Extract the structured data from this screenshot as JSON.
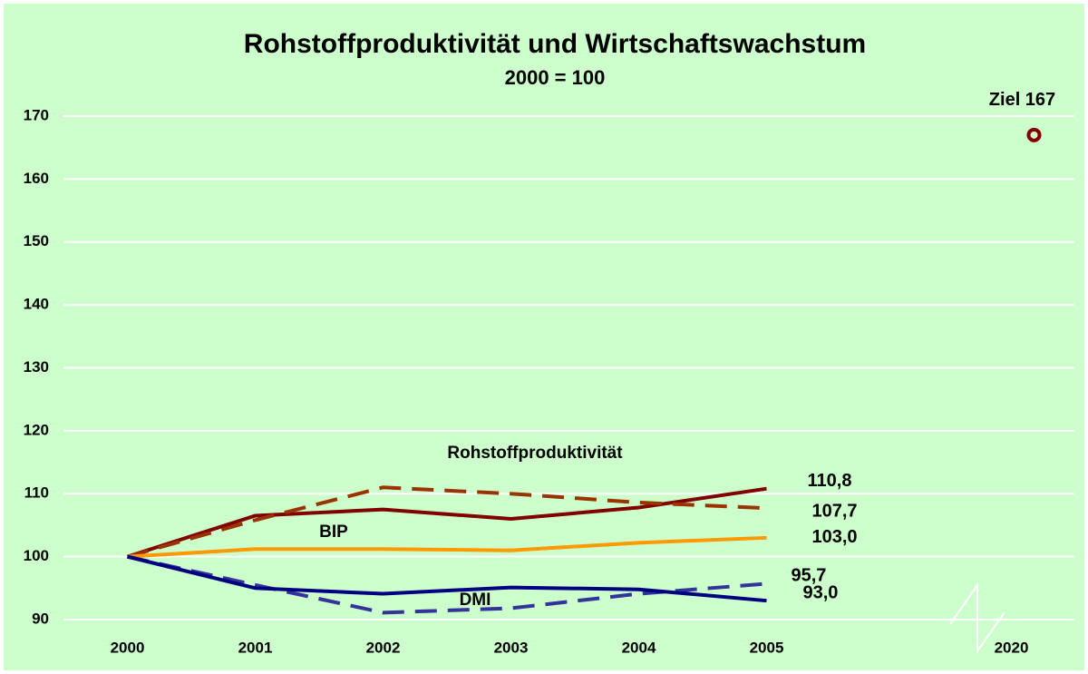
{
  "chart_data": {
    "type": "line",
    "title": "Rohstoffproduktivität  und Wirtschaftswachstum",
    "subtitle": "2000 = 100",
    "categories": [
      "2000",
      "2001",
      "2002",
      "2003",
      "2004",
      "2005",
      null,
      "2020"
    ],
    "ylim": [
      90,
      170
    ],
    "yticks": [
      90,
      100,
      110,
      120,
      130,
      140,
      150,
      160,
      170
    ],
    "grid": true,
    "series": [
      {
        "name": "Rohstoffproduktivität",
        "color": "#800000",
        "dashed": false,
        "values": [
          100,
          106.5,
          107.5,
          106,
          107.8,
          110.8,
          null,
          null
        ],
        "value_labels": [
          null,
          null,
          null,
          null,
          null,
          "110,8",
          null,
          null
        ]
      },
      {
        "color": "#993300",
        "dashed": true,
        "values": [
          100,
          105.8,
          111,
          110,
          108.6,
          107.7,
          null,
          null
        ],
        "value_labels": [
          null,
          null,
          null,
          null,
          null,
          "107,7",
          null,
          null
        ]
      },
      {
        "name": "BIP",
        "color": "#ff9900",
        "dashed": false,
        "values": [
          100,
          101.2,
          101.2,
          101,
          102.2,
          103.0,
          null,
          null
        ],
        "value_labels": [
          null,
          null,
          null,
          null,
          null,
          "103,0",
          null,
          null
        ]
      },
      {
        "color": "#333399",
        "dashed": true,
        "values": [
          100,
          95.5,
          91.1,
          91.8,
          94.1,
          95.7,
          null,
          null
        ],
        "value_labels": [
          null,
          null,
          null,
          null,
          null,
          "95,7",
          null,
          null
        ]
      },
      {
        "name": "DMI",
        "color": "#000080",
        "dashed": false,
        "values": [
          100,
          95,
          94.1,
          95.1,
          94.8,
          93.0,
          null,
          null
        ],
        "value_labels": [
          null,
          null,
          null,
          null,
          null,
          "93,0",
          null,
          null
        ]
      },
      {
        "color": "#800000",
        "marker": true,
        "values": [
          null,
          null,
          null,
          null,
          null,
          null,
          null,
          167
        ],
        "value_labels": [
          null,
          null,
          null,
          null,
          null,
          null,
          null,
          "Ziel 167"
        ]
      }
    ]
  }
}
